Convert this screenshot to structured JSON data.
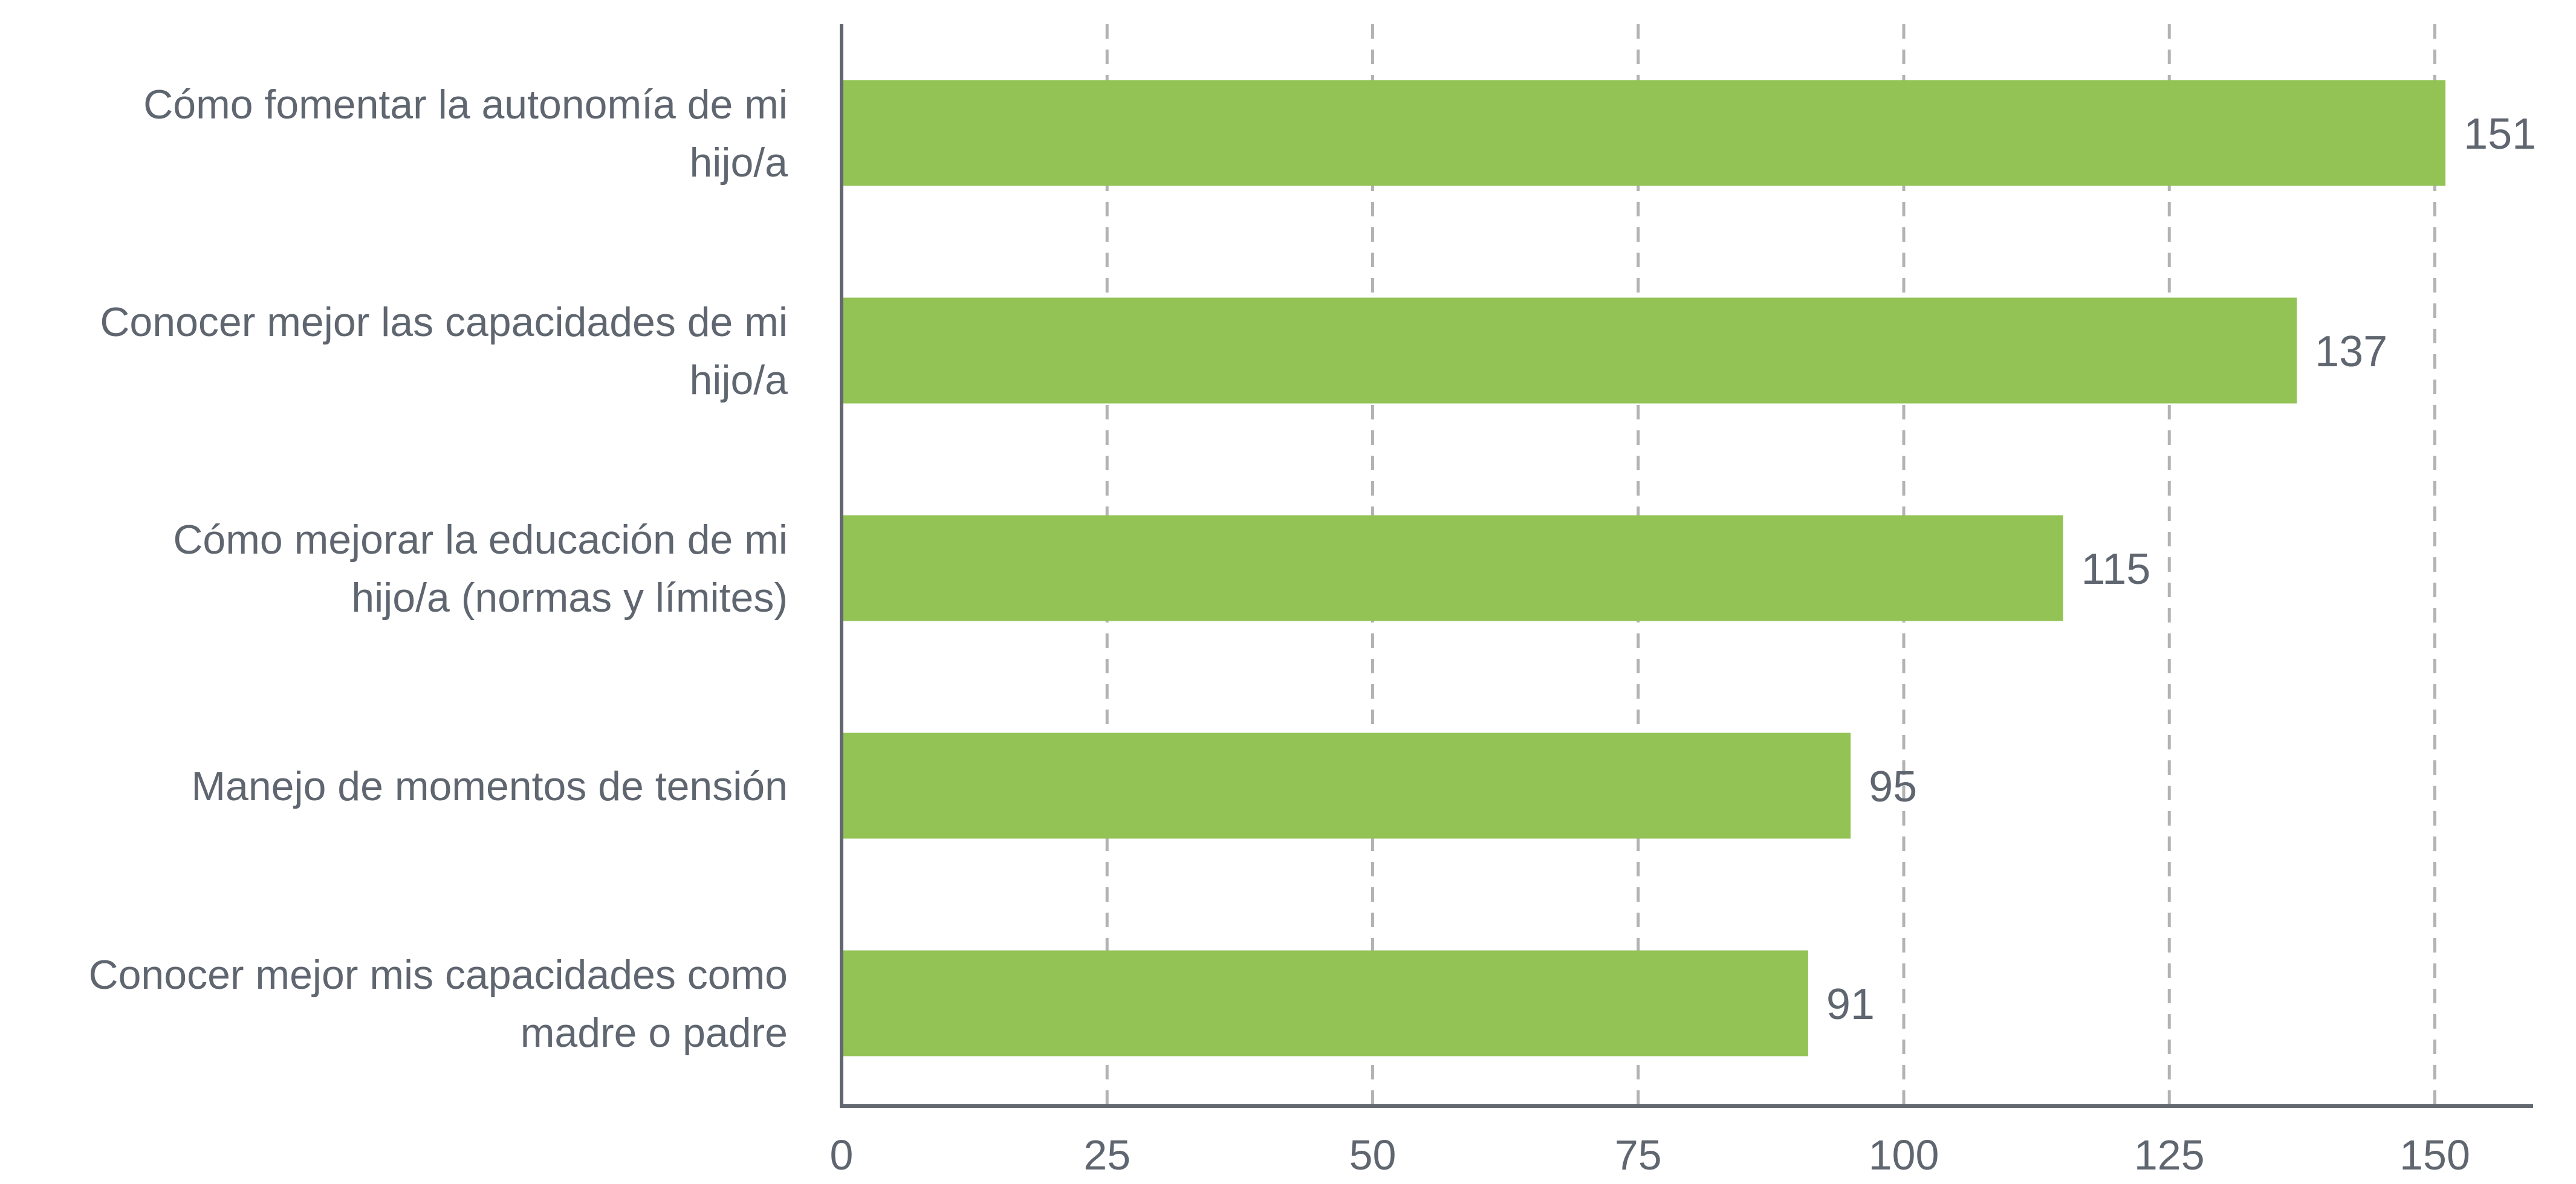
{
  "colors": {
    "bar": "#93c255",
    "axis": "#636870",
    "grid": "#b3b3b3",
    "text": "#5f6670"
  },
  "chart_data": {
    "type": "bar",
    "orientation": "horizontal",
    "title": "",
    "xlabel": "",
    "ylabel": "",
    "xlim": [
      0,
      160
    ],
    "xticks": [
      0,
      25,
      50,
      75,
      100,
      125,
      150
    ],
    "grid": "vertical-dashed",
    "legend": "none",
    "categories": [
      [
        "Cómo fomentar la autonomía de mi",
        "hijo/a"
      ],
      [
        "Conocer mejor las capacidades de mi",
        "hijo/a"
      ],
      [
        "Cómo mejorar la educación de mi",
        "hijo/a (normas y límites)"
      ],
      [
        "Manejo de momentos de tensión"
      ],
      [
        "Conocer mejor mis capacidades como",
        "madre o padre"
      ]
    ],
    "values": [
      151,
      137,
      115,
      95,
      91
    ]
  }
}
